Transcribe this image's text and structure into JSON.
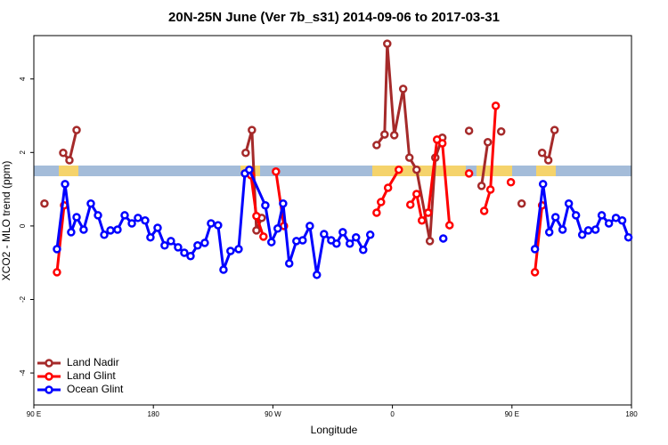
{
  "chart_data": {
    "type": "line",
    "title": "20N-25N June (Ver 7b_s31)   2014-09-06 to 2017-03-31",
    "x_label": "Longitude",
    "y_label": "XCO2 - MLO trend (ppm)",
    "xlim": [
      90,
      540
    ],
    "xticks": [
      {
        "value": 90,
        "label": "90 E"
      },
      {
        "value": 180,
        "label": "180"
      },
      {
        "value": 270,
        "label": "90 W"
      },
      {
        "value": 360,
        "label": "0"
      },
      {
        "value": 450,
        "label": "90 E"
      },
      {
        "value": 540,
        "label": "180"
      }
    ],
    "ylim": [
      -4.87,
      5.18
    ],
    "yticks": [
      -4,
      -2,
      0,
      2,
      4
    ],
    "legend": "bottom-left",
    "series": [
      {
        "name": "Land Nadir",
        "color": "#a52a2a",
        "x": [
          98.0,
          null,
          112.1,
          116.8,
          122.2,
          null,
          249.5,
          254.2,
          257.6,
          261.6,
          null,
          348.1,
          354.1,
          356.1,
          361.4,
          368.1,
          372.8,
          378.2,
          388.2,
          392.3,
          397.6,
          null,
          417.7,
          null,
          427.1,
          431.8,
          null,
          441.9,
          null,
          457.3,
          null,
          472.7,
          477.4,
          482.1
        ],
        "values": [
          0.61,
          null,
          1.99,
          1.79,
          2.61,
          null,
          1.99,
          2.61,
          -0.12,
          0.22,
          null,
          2.2,
          2.49,
          4.96,
          2.47,
          3.73,
          1.86,
          1.53,
          -0.41,
          1.86,
          2.4,
          null,
          2.59,
          null,
          1.09,
          2.28,
          null,
          2.57,
          null,
          0.61,
          null,
          1.99,
          1.79,
          2.61
        ]
      },
      {
        "name": "Land Glint",
        "color": "#ff0000",
        "x": [
          107.4,
          112.8,
          null,
          253.5,
          257.6,
          262.9,
          null,
          272.3,
          278.3,
          null,
          348.1,
          351.4,
          356.7,
          364.8,
          null,
          373.5,
          378.2,
          382.2,
          386.9,
          393.6,
          397.6,
          403.0,
          null,
          417.7,
          null,
          429.1,
          433.8,
          437.8,
          null,
          449.2,
          null,
          467.3,
          472.7
        ],
        "values": [
          -1.26,
          0.56,
          null,
          1.38,
          0.27,
          -0.29,
          null,
          1.48,
          0,
          null,
          0.36,
          0.65,
          1.04,
          1.53,
          null,
          0.58,
          0.87,
          0.15,
          0.36,
          2.35,
          2.25,
          0.02,
          null,
          1.43,
          null,
          0.41,
          0.99,
          3.27,
          null,
          1.19,
          null,
          -1.26,
          0.56
        ]
      },
      {
        "name": "Ocean Glint",
        "color": "#0000ff",
        "x": [
          107.4,
          113.5,
          118.1,
          122.2,
          127.5,
          132.9,
          138.3,
          143.0,
          147.7,
          153.0,
          158.4,
          163.8,
          168.4,
          173.8,
          177.8,
          183.2,
          188.5,
          193.2,
          198.6,
          203.3,
          208.0,
          213.3,
          218.7,
          223.4,
          228.7,
          232.8,
          238.1,
          244.2,
          248.9,
          252.2,
          264.3,
          268.9,
          273.6,
          277.7,
          282.3,
          287.7,
          292.4,
          297.8,
          303.1,
          308.5,
          313.9,
          317.9,
          322.6,
          327.9,
          332.6,
          338.0,
          343.3,
          null,
          398.3,
          null,
          467.3,
          473.4,
          478.1,
          482.8,
          488.1,
          492.8,
          498.2,
          502.9,
          507.5,
          512.9,
          517.6,
          523.0,
          528.3,
          533.0,
          537.7
        ],
        "values": [
          -0.63,
          1.14,
          -0.17,
          0.24,
          -0.1,
          0.61,
          0.29,
          -0.24,
          -0.12,
          -0.1,
          0.29,
          0.07,
          0.22,
          0.15,
          -0.31,
          -0.05,
          -0.53,
          -0.41,
          -0.58,
          -0.73,
          -0.82,
          -0.53,
          -0.46,
          0.07,
          0.02,
          -1.19,
          -0.68,
          -0.63,
          1.43,
          1.53,
          0.56,
          -0.44,
          -0.07,
          0.61,
          -1.02,
          -0.41,
          -0.39,
          0,
          -1.33,
          -0.22,
          -0.39,
          -0.48,
          -0.17,
          -0.48,
          -0.31,
          -0.65,
          -0.24,
          null,
          -0.34,
          null,
          -0.63,
          1.14,
          -0.17,
          0.24,
          -0.1,
          0.61,
          0.29,
          -0.24,
          -0.12,
          -0.1,
          0.29,
          0.07,
          0.22,
          0.15,
          -0.31
        ]
      }
    ]
  }
}
